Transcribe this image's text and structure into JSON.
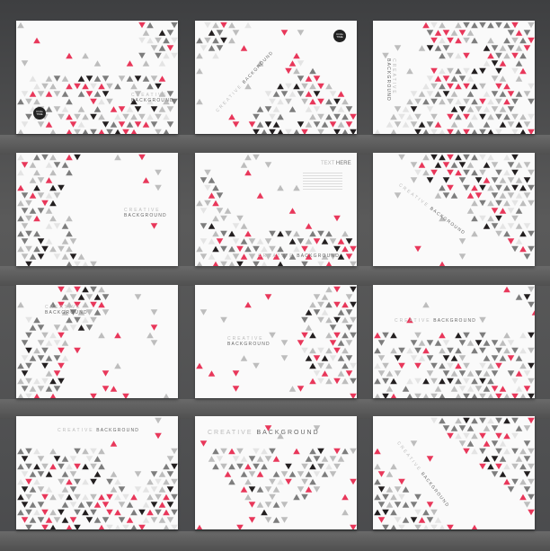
{
  "colors": {
    "red": "#e8375a",
    "dark": "#231f20",
    "gray": "#7d7d7d",
    "light": "#bdbdbd",
    "pale": "#e4e4e4",
    "card": "#fafafa",
    "backdrop": "#4a4b4d"
  },
  "text": {
    "creative": "CREATIVE",
    "background": "BACKGROUND",
    "text_here_a": "TEXT",
    "text_here_b": "HERE",
    "badge": "Circle TIME"
  },
  "cards": [
    {
      "id": 1,
      "layout": "notched-panels",
      "has_badge": true
    },
    {
      "id": 2,
      "layout": "diagonal-ribbon-peak",
      "has_badge": true
    },
    {
      "id": 3,
      "layout": "vertical-text-slope"
    },
    {
      "id": 4,
      "layout": "left-wedge"
    },
    {
      "id": 5,
      "layout": "text-here-frame"
    },
    {
      "id": 6,
      "layout": "diagonal-split"
    },
    {
      "id": 7,
      "layout": "hexagons"
    },
    {
      "id": 8,
      "layout": "circle"
    },
    {
      "id": 9,
      "layout": "bands"
    },
    {
      "id": 10,
      "layout": "zigzag"
    },
    {
      "id": 11,
      "layout": "v-shape"
    },
    {
      "id": 12,
      "layout": "diagonal-ribbon"
    }
  ]
}
